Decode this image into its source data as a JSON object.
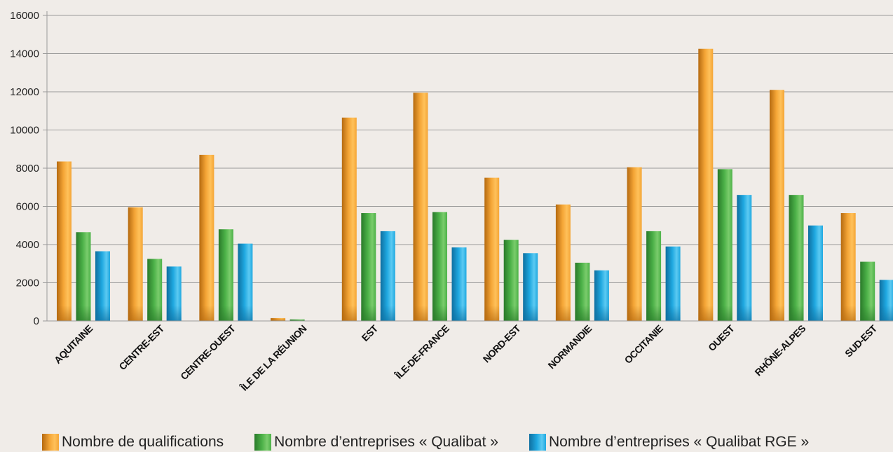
{
  "colors": {
    "series_1": "#f4a536",
    "series_2": "#4cb148",
    "series_3": "#1fa8e0",
    "grid": "#9a9a9a",
    "background": "#f0ece8"
  },
  "chart_data": {
    "type": "bar",
    "title": "",
    "xlabel": "",
    "ylabel": "",
    "ylim": [
      0,
      16000
    ],
    "yticks": [
      0,
      2000,
      4000,
      6000,
      8000,
      10000,
      12000,
      14000,
      16000
    ],
    "ytick_labels": [
      "0",
      "2000",
      "4000",
      "6000",
      "8000",
      "10000",
      "12000",
      "14000",
      "16000"
    ],
    "grid": true,
    "legend_position": "bottom",
    "categories": [
      "AQUITAINE",
      "CENTRE-EST",
      "CENTRE-OUEST",
      "ÎLE DE LA RÉUNION",
      "EST",
      "ÎLE-DE-FRANCE",
      "NORD-EST",
      "NORMANDIE",
      "OCCITANIE",
      "OUEST",
      "RHÔNE-ALPES",
      "SUD-EST"
    ],
    "series": [
      {
        "name": "Nombre de qualifications",
        "values": [
          8350,
          5950,
          8700,
          150,
          10650,
          11950,
          7500,
          6100,
          8050,
          14250,
          12100,
          5650
        ]
      },
      {
        "name": "Nombre d’entreprises « Qualibat »",
        "values": [
          4650,
          3250,
          4800,
          80,
          5650,
          5700,
          4250,
          3050,
          4700,
          7950,
          6600,
          3100
        ]
      },
      {
        "name": "Nombre d’entreprises « Qualibat RGE »",
        "values": [
          3650,
          2850,
          4050,
          0,
          4700,
          3850,
          3550,
          2650,
          3900,
          6600,
          5000,
          2150
        ]
      }
    ]
  }
}
